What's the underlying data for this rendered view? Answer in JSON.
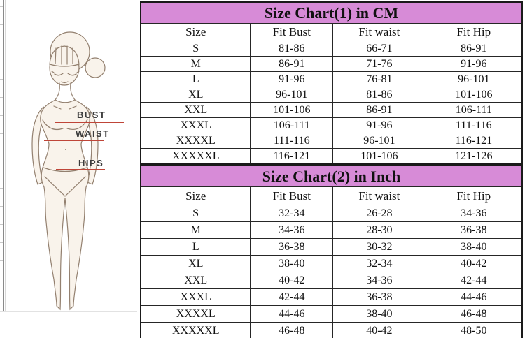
{
  "figure": {
    "labels": [
      {
        "text": "BUST"
      },
      {
        "text": "WAIST"
      },
      {
        "text": "HIPS"
      }
    ]
  },
  "tables": [
    {
      "title": "Size Chart(1) in CM",
      "headers": [
        "Size",
        "Fit Bust",
        "Fit waist",
        "Fit Hip"
      ],
      "rows": [
        [
          "S",
          "81-86",
          "66-71",
          "86-91"
        ],
        [
          "M",
          "86-91",
          "71-76",
          "91-96"
        ],
        [
          "L",
          "91-96",
          "76-81",
          "96-101"
        ],
        [
          "XL",
          "96-101",
          "81-86",
          "101-106"
        ],
        [
          "XXL",
          "101-106",
          "86-91",
          "106-111"
        ],
        [
          "XXXL",
          "106-111",
          "91-96",
          "111-116"
        ],
        [
          "XXXXL",
          "111-116",
          "96-101",
          "116-121"
        ],
        [
          "XXXXXL",
          "116-121",
          "101-106",
          "121-126"
        ]
      ]
    },
    {
      "title": "Size Chart(2) in Inch",
      "headers": [
        "Size",
        "Fit Bust",
        "Fit waist",
        "Fit Hip"
      ],
      "rows": [
        [
          "S",
          "32-34",
          "26-28",
          "34-36"
        ],
        [
          "M",
          "34-36",
          "28-30",
          "36-38"
        ],
        [
          "L",
          "36-38",
          "30-32",
          "38-40"
        ],
        [
          "XL",
          "38-40",
          "32-34",
          "40-42"
        ],
        [
          "XXL",
          "40-42",
          "34-36",
          "42-44"
        ],
        [
          "XXXL",
          "42-44",
          "36-38",
          "44-46"
        ],
        [
          "XXXXL",
          "44-46",
          "38-40",
          "46-48"
        ],
        [
          "XXXXXL",
          "46-48",
          "40-42",
          "48-50"
        ]
      ]
    }
  ],
  "colors": {
    "title_background": "#D78BD7",
    "measure_line": "#BF4538",
    "table_border": "#262626"
  }
}
